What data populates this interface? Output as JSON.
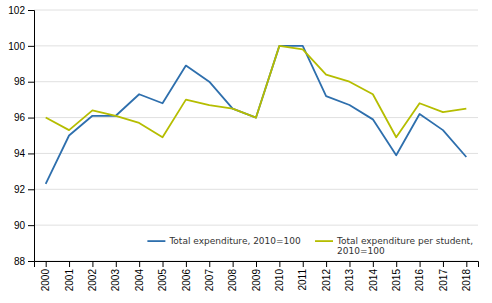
{
  "chart_data": {
    "type": "line",
    "x": [
      2000,
      2001,
      2002,
      2003,
      2004,
      2005,
      2006,
      2007,
      2008,
      2009,
      2010,
      2011,
      2012,
      2013,
      2014,
      2015,
      2016,
      2017,
      2018
    ],
    "series": [
      {
        "name": "Total expenditure, 2010=100",
        "color": "#2e6fad",
        "values": [
          92.3,
          95.0,
          96.1,
          96.1,
          97.3,
          96.8,
          98.9,
          98.0,
          96.5,
          96.0,
          100.0,
          100.0,
          97.2,
          96.7,
          95.9,
          93.9,
          96.2,
          95.3,
          93.8
        ]
      },
      {
        "name": "Total expenditure per student,\n2010=100",
        "color": "#b5bd00",
        "values": [
          96.0,
          95.3,
          96.4,
          96.1,
          95.7,
          94.9,
          97.0,
          96.7,
          96.5,
          96.0,
          100.0,
          99.8,
          98.4,
          98.0,
          97.3,
          94.9,
          96.8,
          96.3,
          96.5
        ]
      }
    ],
    "xlim": [
      1999.5,
      2018.5
    ],
    "xticks": [
      2000,
      2001,
      2002,
      2003,
      2004,
      2005,
      2006,
      2007,
      2008,
      2009,
      2010,
      2011,
      2012,
      2013,
      2014,
      2015,
      2016,
      2017,
      2018
    ],
    "ylim": [
      88,
      102
    ],
    "yticks": [
      88,
      90,
      92,
      94,
      96,
      98,
      100,
      102
    ],
    "grid": true,
    "legend": "lower right"
  }
}
